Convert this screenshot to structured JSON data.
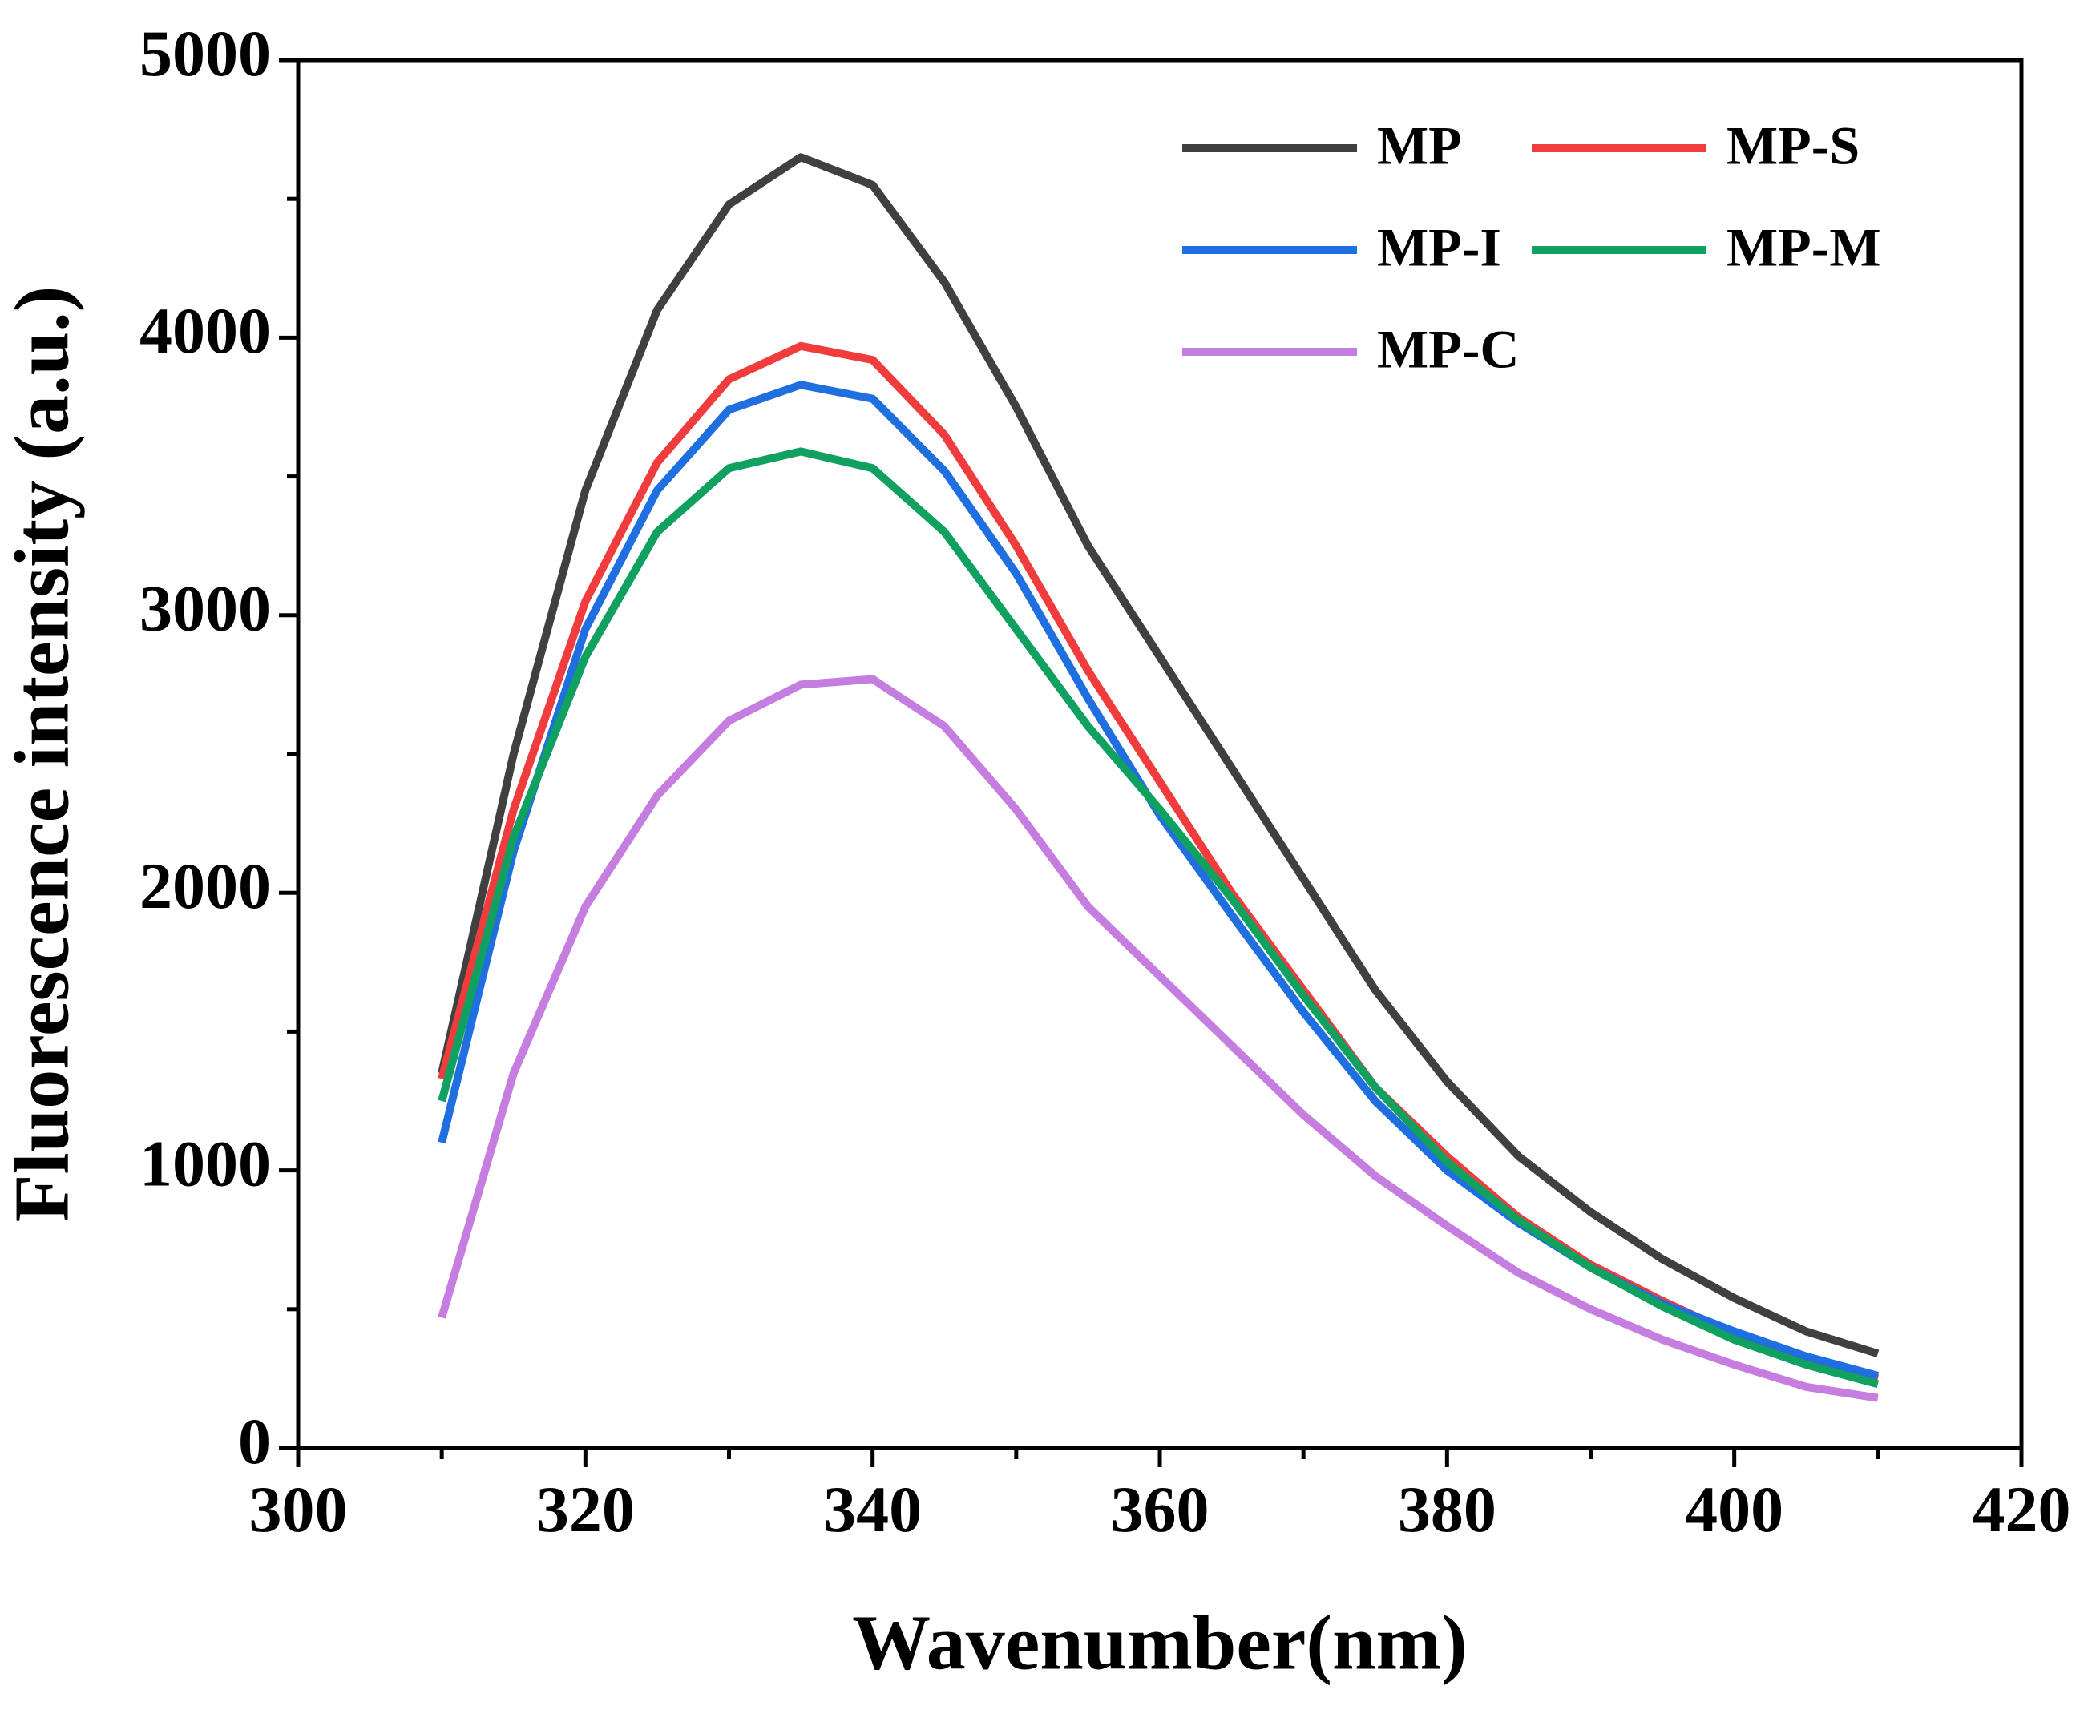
{
  "chart_data": {
    "type": "line",
    "xlabel": "Wavenumber(nm)",
    "ylabel": "Fluorescence intensity (a.u.)",
    "x": [
      310,
      315,
      320,
      325,
      330,
      335,
      340,
      345,
      350,
      355,
      360,
      365,
      370,
      375,
      380,
      385,
      390,
      395,
      400,
      405,
      410
    ],
    "series": [
      {
        "name": "MP",
        "color": "#404040",
        "values": [
          1350,
          2500,
          3450,
          4100,
          4480,
          4650,
          4550,
          4200,
          3750,
          3250,
          2850,
          2450,
          2050,
          1650,
          1320,
          1050,
          850,
          680,
          540,
          420,
          340
        ]
      },
      {
        "name": "MP-S",
        "color": "#f03c3c",
        "values": [
          1330,
          2300,
          3050,
          3550,
          3850,
          3970,
          3920,
          3650,
          3250,
          2800,
          2400,
          2000,
          1650,
          1300,
          1050,
          830,
          660,
          530,
          410,
          320,
          250
        ]
      },
      {
        "name": "MP-I",
        "color": "#1f6fe0",
        "values": [
          1100,
          2150,
          2950,
          3450,
          3740,
          3830,
          3780,
          3520,
          3150,
          2700,
          2280,
          1920,
          1570,
          1250,
          1000,
          810,
          650,
          520,
          420,
          330,
          260
        ]
      },
      {
        "name": "MP-M",
        "color": "#10a060",
        "values": [
          1250,
          2200,
          2850,
          3300,
          3530,
          3590,
          3530,
          3300,
          2950,
          2600,
          2300,
          1980,
          1630,
          1300,
          1030,
          820,
          650,
          510,
          390,
          300,
          230
        ]
      },
      {
        "name": "MP-C",
        "color": "#c57ee0",
        "values": [
          470,
          1350,
          1950,
          2350,
          2620,
          2750,
          2770,
          2600,
          2300,
          1950,
          1700,
          1450,
          1200,
          980,
          800,
          630,
          500,
          390,
          300,
          220,
          180
        ]
      }
    ],
    "xlim": [
      300,
      420
    ],
    "xticks": [
      300,
      320,
      340,
      360,
      380,
      400,
      420
    ],
    "ylim": [
      0,
      5000
    ],
    "yticks": [
      0,
      1000,
      2000,
      3000,
      4000,
      5000
    ],
    "legend": "upper right"
  }
}
